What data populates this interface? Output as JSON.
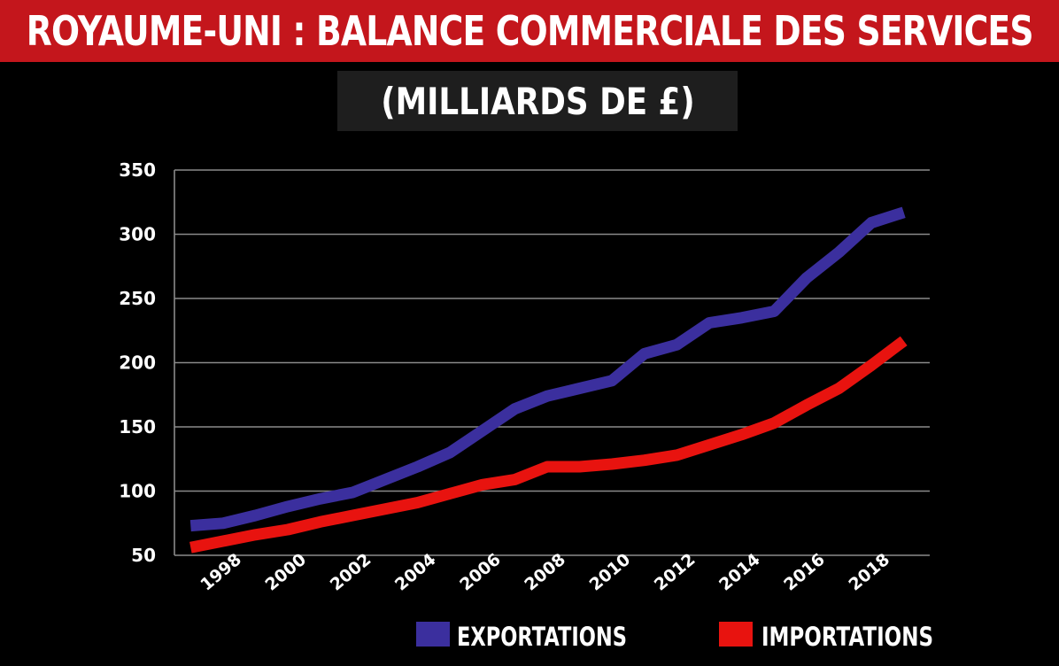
{
  "header": {
    "title": "ROYAUME-UNI : BALANCE COMMERCIALE DES SERVICES",
    "subtitle": "(MILLIARDS DE £)"
  },
  "colors": {
    "title_bg": "#c4161c",
    "exports": "#3b2f9e",
    "imports": "#e8130f",
    "grid": "#8a8a8a"
  },
  "chart_data": {
    "type": "line",
    "title": "ROYAUME-UNI : BALANCE COMMERCIALE DES SERVICES",
    "subtitle": "(MILLIARDS DE £)",
    "xlabel": "",
    "ylabel": "",
    "ylim": [
      50,
      350
    ],
    "yticks": [
      "50",
      "100",
      "150",
      "200",
      "250",
      "300",
      "350"
    ],
    "xlim": [
      1996.5,
      2019.8
    ],
    "xticks": [
      "1998",
      "2000",
      "2002",
      "2004",
      "2006",
      "2008",
      "2010",
      "2012",
      "2014",
      "2016",
      "2018"
    ],
    "grid": true,
    "legend_position": "bottom",
    "x": [
      1997,
      1998,
      1999,
      2000,
      2001,
      2002,
      2003,
      2004,
      2005,
      2006,
      2007,
      2008,
      2009,
      2010,
      2011,
      2012,
      2013,
      2014,
      2015,
      2016,
      2017,
      2018,
      2019
    ],
    "series": [
      {
        "name": "EXPORTATIONS",
        "values": [
          73,
          75,
          81,
          88,
          94,
          99,
          109,
          119,
          130,
          147,
          164,
          174,
          180,
          186,
          207,
          214,
          231,
          235,
          240,
          266,
          286,
          309,
          317
        ]
      },
      {
        "name": "IMPORTATIONS",
        "values": [
          56,
          61,
          66,
          70,
          76,
          81,
          86,
          91,
          98,
          105,
          109,
          119,
          119,
          121,
          124,
          128,
          136,
          144,
          153,
          167,
          180,
          198,
          217
        ]
      }
    ]
  }
}
